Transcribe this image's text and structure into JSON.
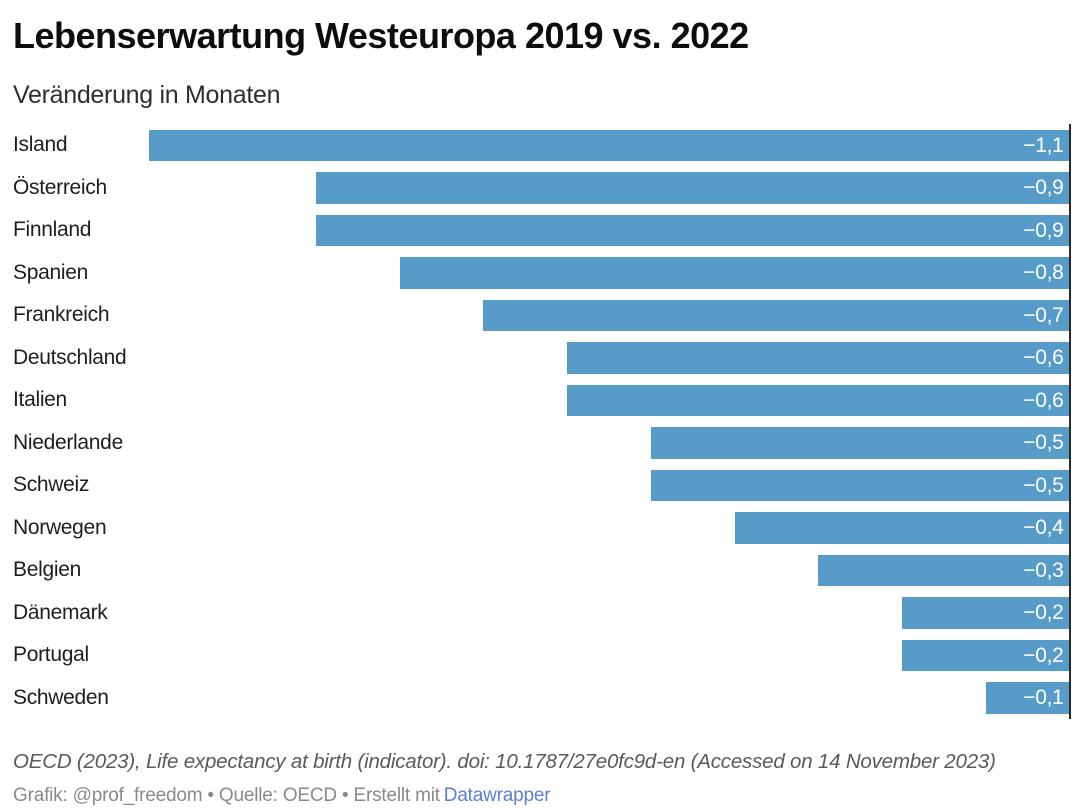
{
  "header": {
    "title": "Lebenserwartung Westeuropa 2019 vs. 2022",
    "subtitle": "Veränderung in Monaten"
  },
  "chart_data": {
    "type": "bar",
    "orientation": "horizontal",
    "title": "Lebenserwartung Westeuropa 2019 vs. 2022",
    "subtitle": "Veränderung in Monaten",
    "unit": "Monate",
    "categories": [
      "Island",
      "Österreich",
      "Finnland",
      "Spanien",
      "Frankreich",
      "Deutschland",
      "Italien",
      "Niederlande",
      "Schweiz",
      "Norwegen",
      "Belgien",
      "Dänemark",
      "Portugal",
      "Schweden"
    ],
    "values": [
      -1.1,
      -0.9,
      -0.9,
      -0.8,
      -0.7,
      -0.6,
      -0.6,
      -0.5,
      -0.5,
      -0.4,
      -0.3,
      -0.2,
      -0.2,
      -0.1
    ],
    "value_labels": [
      "−1,1",
      "−0,9",
      "−0,9",
      "−0,8",
      "−0,7",
      "−0,6",
      "−0,6",
      "−0,5",
      "−0,5",
      "−0,4",
      "−0,3",
      "−0,2",
      "−0,2",
      "−0,1"
    ],
    "xlim": [
      -1.1,
      0
    ],
    "grid": "off",
    "legend": "none",
    "bar_color": "#579bc8",
    "value_label_color": "#ffffff",
    "axis_line_color": "#2a2a2a"
  },
  "footer": {
    "source_line": "OECD (2023), Life expectancy at birth (indicator). doi: 10.1787/27e0fc9d-en (Accessed on 14 November 2023)",
    "credit_prefix": "Grafik: @prof_freedom • Quelle: OECD • Erstellt mit",
    "credit_link": "Datawrapper",
    "link_color": "#5b7fd6"
  }
}
